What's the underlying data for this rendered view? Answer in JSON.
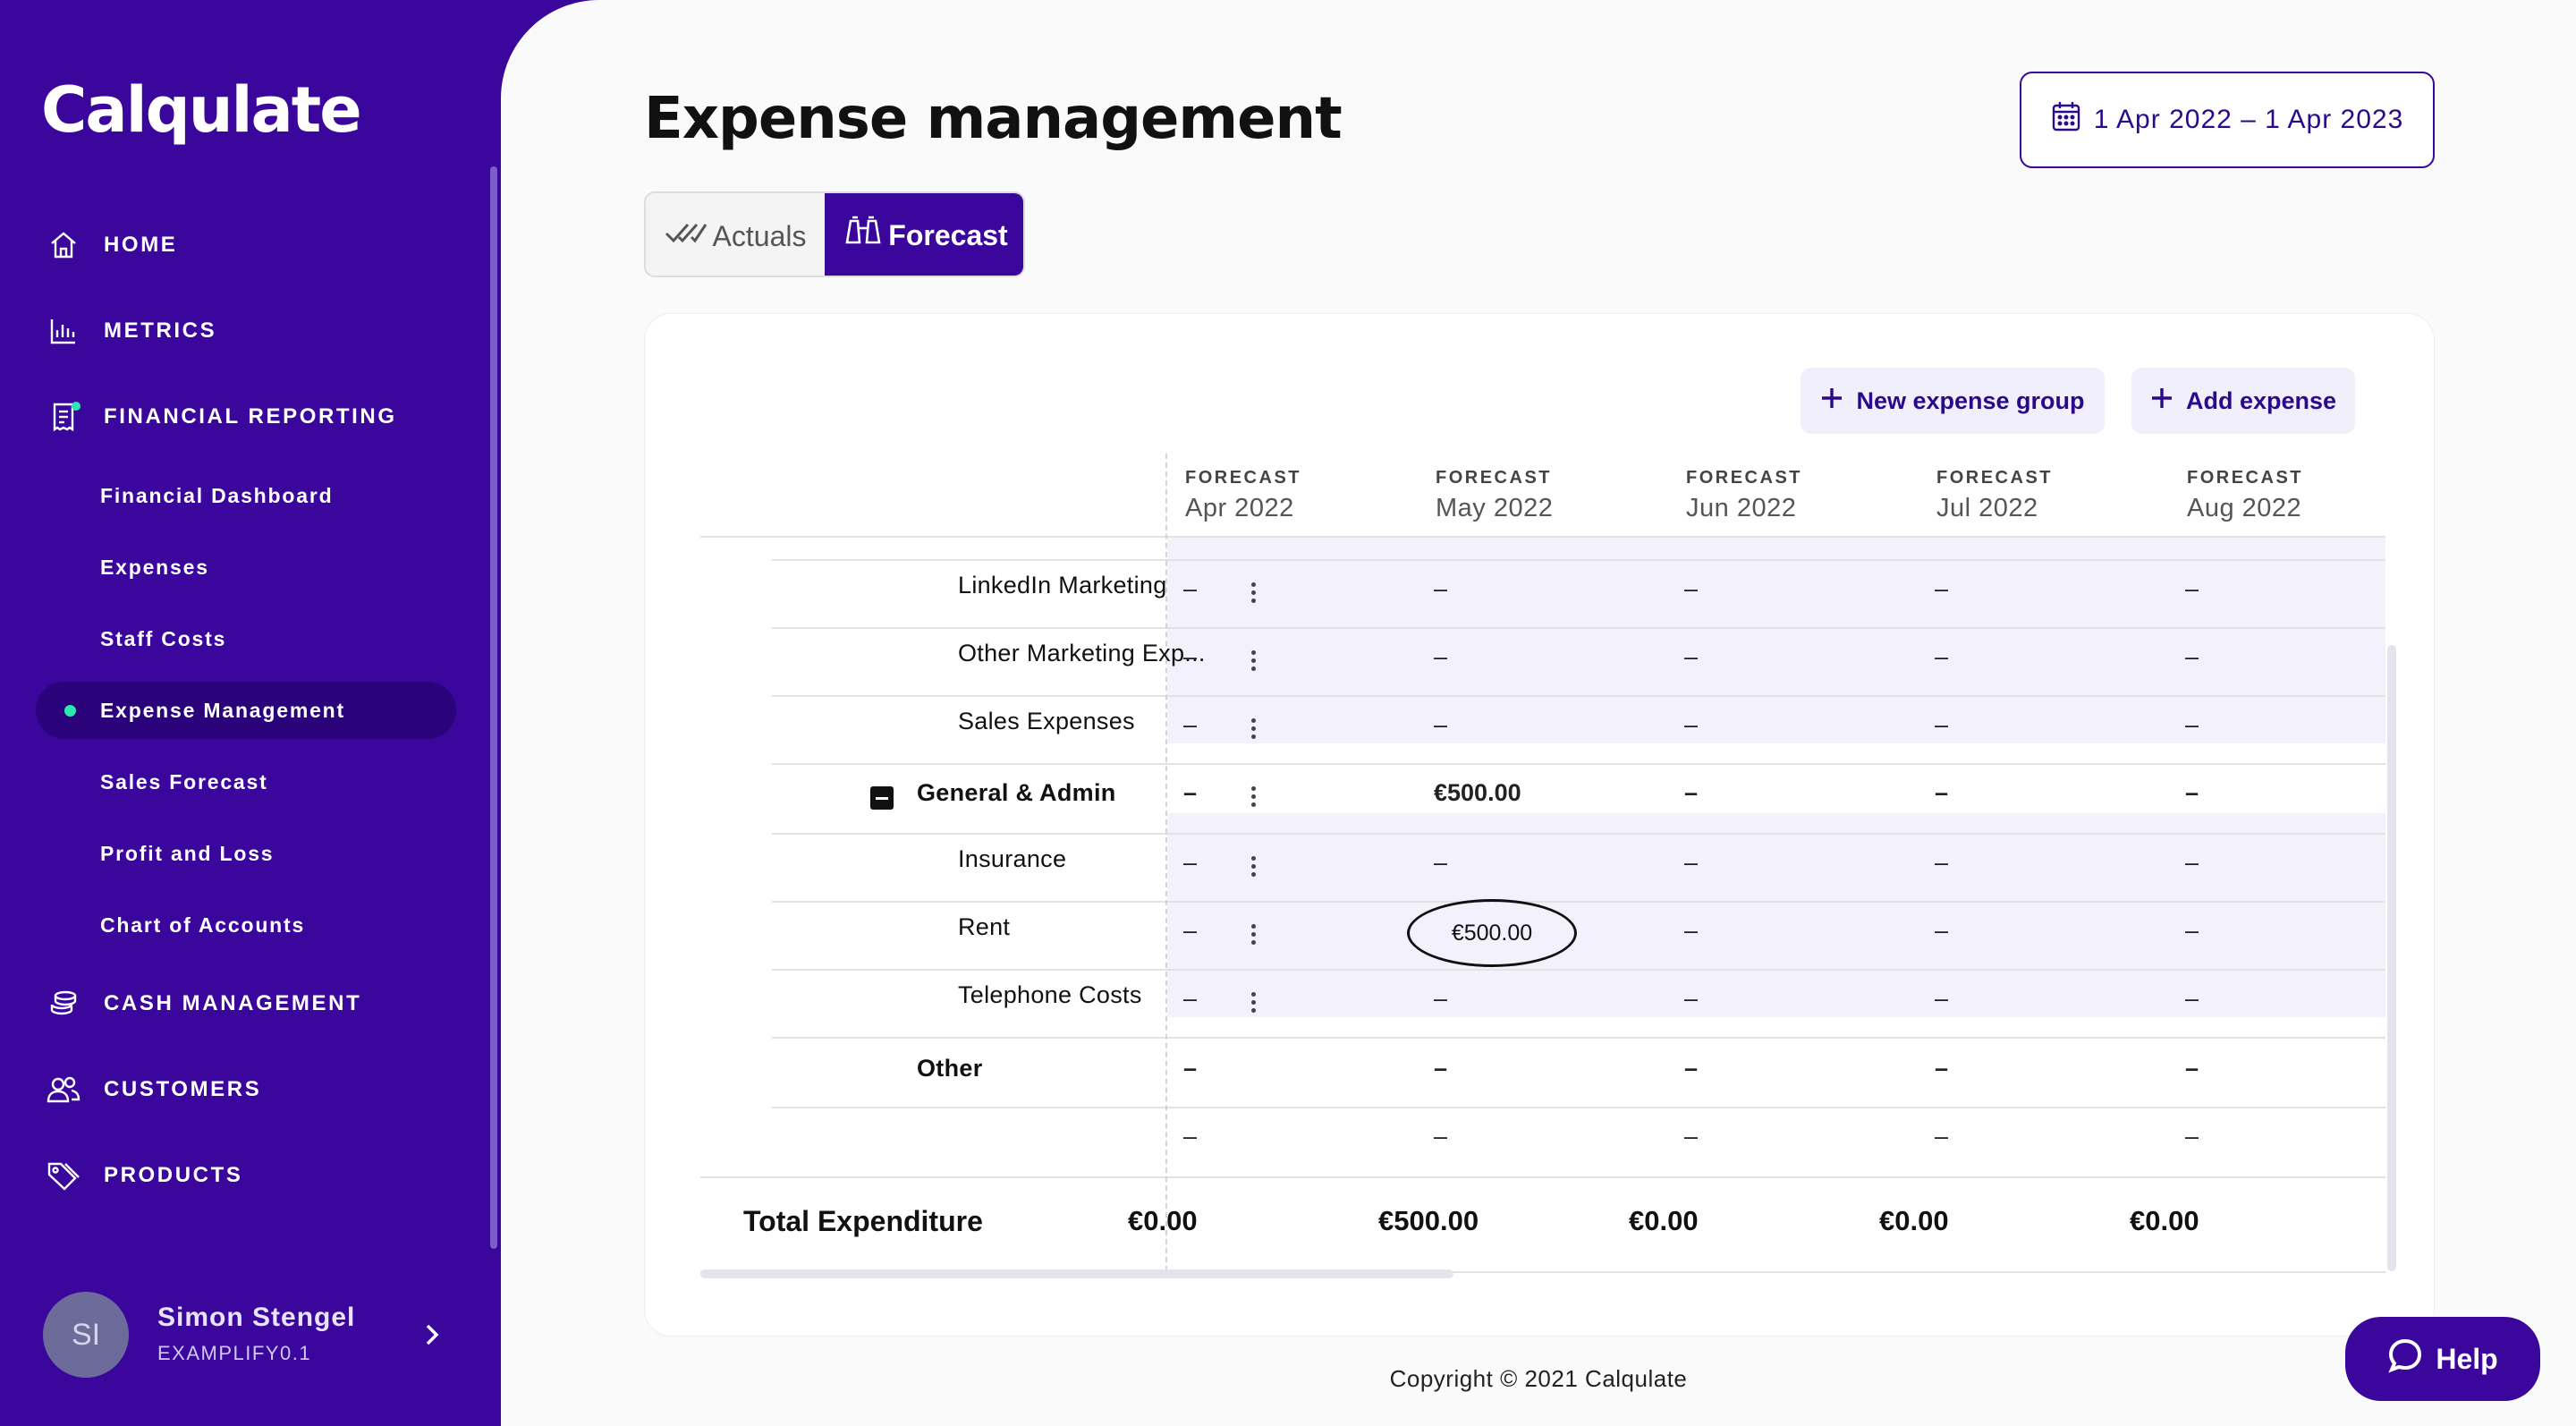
{
  "brand": {
    "name": "Calqulate"
  },
  "nav": {
    "home": "HOME",
    "metrics": "METRICS",
    "financial_reporting": "FINANCIAL REPORTING",
    "sub": {
      "financial_dashboard": "Financial Dashboard",
      "expenses": "Expenses",
      "staff_costs": "Staff Costs",
      "expense_management": "Expense Management",
      "sales_forecast": "Sales Forecast",
      "profit_and_loss": "Profit and Loss",
      "chart_of_accounts": "Chart of Accounts"
    },
    "cash_management": "CASH MANAGEMENT",
    "customers": "CUSTOMERS",
    "products": "PRODUCTS"
  },
  "user": {
    "initials": "SI",
    "name": "Simon Stengel",
    "org": "EXAMPLIFY0.1"
  },
  "page": {
    "title": "Expense management",
    "date_range": "1 Apr 2022 – 1 Apr 2023"
  },
  "toggle": {
    "actuals": "Actuals",
    "forecast": "Forecast"
  },
  "actions": {
    "new_group": "New expense group",
    "add_expense": "Add expense"
  },
  "columns": [
    {
      "kind": "FORECAST",
      "month": "Apr 2022"
    },
    {
      "kind": "FORECAST",
      "month": "May 2022"
    },
    {
      "kind": "FORECAST",
      "month": "Jun 2022"
    },
    {
      "kind": "FORECAST",
      "month": "Jul 2022"
    },
    {
      "kind": "FORECAST",
      "month": "Aug 2022"
    }
  ],
  "rows": [
    {
      "label": "LinkedIn Marketing",
      "values": [
        "–",
        "–",
        "–",
        "–",
        "–"
      ]
    },
    {
      "label": "Other Marketing Exp...",
      "values": [
        "–",
        "–",
        "–",
        "–",
        "–"
      ]
    },
    {
      "label": "Sales Expenses",
      "values": [
        "–",
        "–",
        "–",
        "–",
        "–"
      ]
    },
    {
      "label": "General & Admin",
      "values": [
        "–",
        "€500.00",
        "–",
        "–",
        "–"
      ]
    },
    {
      "label": "Insurance",
      "values": [
        "–",
        "–",
        "–",
        "–",
        "–"
      ]
    },
    {
      "label": "Rent",
      "values": [
        "–",
        "€500.00",
        "–",
        "–",
        "–"
      ]
    },
    {
      "label": "Telephone Costs",
      "values": [
        "–",
        "–",
        "–",
        "–",
        "–"
      ]
    },
    {
      "label": "Other",
      "values": [
        "–",
        "–",
        "–",
        "–",
        "–"
      ]
    },
    {
      "label": "",
      "values": [
        "–",
        "–",
        "–",
        "–",
        "–"
      ]
    }
  ],
  "total": {
    "label": "Total Expenditure",
    "values": [
      "€0.00",
      "€500.00",
      "€0.00",
      "€0.00",
      "€0.00"
    ]
  },
  "footer": {
    "copyright": "Copyright © 2021 Calqulate",
    "help": "Help"
  }
}
